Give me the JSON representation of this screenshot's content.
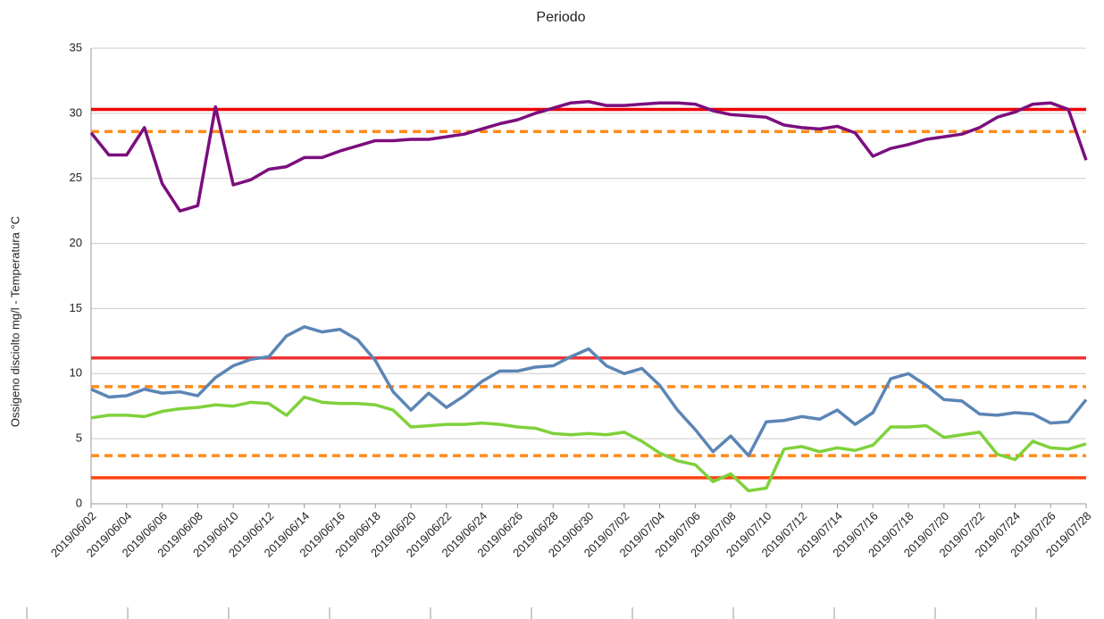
{
  "chart_data": {
    "type": "line",
    "title": "Periodo",
    "y_label": "Ossigeno disciolto mg/l - Temperatura °C",
    "categories": [
      "2019/06/02",
      null,
      "2019/06/04",
      null,
      "2019/06/06",
      null,
      "2019/06/08",
      null,
      "2019/06/10",
      null,
      "2019/06/12",
      null,
      "2019/06/14",
      null,
      "2019/06/16",
      null,
      "2019/06/18",
      null,
      "2019/06/20",
      null,
      "2019/06/22",
      null,
      "2019/06/24",
      null,
      "2019/06/26",
      null,
      "2019/06/28",
      null,
      "2019/06/30",
      null,
      "2019/07/02",
      null,
      "2019/07/04",
      null,
      "2019/07/06",
      null,
      "2019/07/08",
      null,
      "2019/07/10",
      null,
      "2019/07/12",
      null,
      "2019/07/14",
      null,
      "2019/07/16",
      null,
      "2019/07/18",
      null,
      "2019/07/20",
      null,
      "2019/07/22",
      null,
      "2019/07/24",
      null,
      "2019/07/26",
      null,
      "2019/07/28"
    ],
    "series": [
      {
        "color": "#7b0e7e",
        "values": [
          28.5,
          26.8,
          26.8,
          28.9,
          24.6,
          22.5,
          22.9,
          30.5,
          24.5,
          24.9,
          25.7,
          25.9,
          26.6,
          26.6,
          27.1,
          27.5,
          27.9,
          27.9,
          28.0,
          28.0,
          28.2,
          28.4,
          28.8,
          29.2,
          29.5,
          30.0,
          30.4,
          30.8,
          30.9,
          30.6,
          30.6,
          30.7,
          30.8,
          30.8,
          30.7,
          30.2,
          29.9,
          29.8,
          29.7,
          29.1,
          28.9,
          28.8,
          29.0,
          28.5,
          26.7,
          27.3,
          27.6,
          28.0,
          28.2,
          28.4,
          28.9,
          29.7,
          30.1,
          30.7,
          30.8,
          30.3,
          26.4
        ]
      },
      {
        "color": "#5b85b5",
        "values": [
          8.8,
          8.2,
          8.3,
          8.8,
          8.5,
          8.6,
          8.3,
          9.7,
          10.6,
          11.1,
          11.3,
          12.9,
          13.6,
          13.2,
          13.4,
          12.6,
          11.0,
          8.6,
          7.2,
          8.5,
          7.4,
          8.3,
          9.4,
          10.2,
          10.2,
          10.5,
          10.6,
          11.3,
          11.9,
          10.6,
          10.0,
          10.4,
          9.1,
          7.2,
          5.7,
          4.0,
          5.2,
          3.7,
          6.3,
          6.4,
          6.7,
          6.5,
          7.2,
          6.1,
          7.0,
          9.6,
          10.0,
          9.1,
          8.0,
          7.9,
          6.9,
          6.8,
          7.0,
          6.9,
          6.2,
          6.3,
          8.0
        ]
      },
      {
        "color": "#7fd13b",
        "values": [
          6.6,
          6.8,
          6.8,
          6.7,
          7.1,
          7.3,
          7.4,
          7.6,
          7.5,
          7.8,
          7.7,
          6.8,
          8.2,
          7.8,
          7.7,
          7.7,
          7.6,
          7.2,
          5.9,
          6.0,
          6.1,
          6.1,
          6.2,
          6.1,
          5.9,
          5.8,
          5.4,
          5.3,
          5.4,
          5.3,
          5.5,
          4.8,
          3.9,
          3.3,
          3.0,
          1.7,
          2.3,
          1.0,
          1.2,
          4.2,
          4.4,
          4.0,
          4.3,
          4.1,
          4.5,
          5.9,
          5.9,
          6.0,
          5.1,
          5.3,
          5.5,
          3.8,
          3.4,
          4.8,
          4.3,
          4.2,
          4.6
        ]
      }
    ],
    "reference_lines": [
      {
        "value": 30.3,
        "color": "#ee0000",
        "style": "solid"
      },
      {
        "value": 28.6,
        "color": "#ff8c1a",
        "style": "dashed"
      },
      {
        "value": 11.2,
        "color": "#ee3333",
        "style": "solid"
      },
      {
        "value": 9.0,
        "color": "#ff8c1a",
        "style": "dashed"
      },
      {
        "value": 3.7,
        "color": "#ff8c1a",
        "style": "dashed"
      },
      {
        "value": 2.0,
        "color": "#ff4411",
        "style": "solid"
      }
    ],
    "ylim": [
      0,
      35
    ],
    "yticks": [
      0,
      5,
      10,
      15,
      20,
      25,
      30,
      35
    ],
    "grid": true
  }
}
